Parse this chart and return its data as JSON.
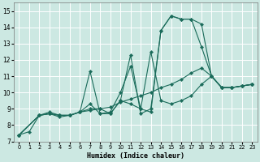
{
  "xlabel": "Humidex (Indice chaleur)",
  "bg_color": "#cce8e2",
  "grid_color": "#b0d8d0",
  "line_color": "#1a6b5a",
  "xlim": [
    -0.5,
    23.5
  ],
  "ylim": [
    7,
    15.5
  ],
  "xticks": [
    0,
    1,
    2,
    3,
    4,
    5,
    6,
    7,
    8,
    9,
    10,
    11,
    12,
    13,
    14,
    15,
    16,
    17,
    18,
    19,
    20,
    21,
    22,
    23
  ],
  "yticks": [
    7,
    8,
    9,
    10,
    11,
    12,
    13,
    14,
    15
  ],
  "series": [
    {
      "x": [
        0,
        1,
        2,
        3,
        4,
        5,
        6,
        7,
        8,
        9,
        10,
        11,
        12,
        13,
        14,
        15,
        16,
        17,
        18,
        19,
        20,
        21,
        22,
        23
      ],
      "y": [
        7.4,
        7.6,
        8.6,
        8.7,
        8.6,
        8.6,
        8.8,
        8.9,
        9.0,
        9.1,
        9.4,
        9.6,
        9.8,
        10.0,
        10.3,
        10.5,
        10.8,
        11.2,
        11.5,
        11.0,
        10.3,
        10.3,
        10.4,
        10.5
      ]
    },
    {
      "x": [
        0,
        2,
        3,
        4,
        5,
        6,
        7,
        8,
        9,
        10,
        11,
        12,
        13,
        14,
        15,
        16,
        17,
        18,
        19,
        20,
        21,
        22,
        23
      ],
      "y": [
        7.4,
        8.6,
        8.7,
        8.6,
        8.6,
        8.8,
        11.3,
        8.7,
        8.8,
        10.0,
        11.6,
        9.0,
        12.5,
        9.5,
        9.3,
        9.5,
        9.8,
        10.5,
        11.0,
        10.3,
        10.3,
        10.4,
        10.5
      ]
    },
    {
      "x": [
        0,
        2,
        3,
        4,
        5,
        6,
        7,
        8,
        9,
        10,
        11,
        12,
        13,
        14,
        15,
        16,
        17,
        18,
        19,
        20,
        21,
        22,
        23
      ],
      "y": [
        7.4,
        8.6,
        8.7,
        8.5,
        8.6,
        8.8,
        9.3,
        8.7,
        8.7,
        9.5,
        9.3,
        9.0,
        8.8,
        13.8,
        14.7,
        14.5,
        14.5,
        14.2,
        11.0,
        10.3,
        10.3,
        10.4,
        10.5
      ]
    },
    {
      "x": [
        0,
        2,
        3,
        4,
        5,
        6,
        7,
        8,
        9,
        10,
        11,
        12,
        13,
        14,
        15,
        16,
        17,
        18,
        19,
        20,
        21,
        22,
        23
      ],
      "y": [
        7.4,
        8.6,
        8.8,
        8.6,
        8.6,
        8.8,
        9.0,
        9.0,
        8.7,
        9.5,
        12.3,
        8.7,
        9.0,
        13.8,
        14.7,
        14.5,
        14.5,
        12.8,
        11.0,
        10.3,
        10.3,
        10.4,
        10.5
      ]
    }
  ]
}
